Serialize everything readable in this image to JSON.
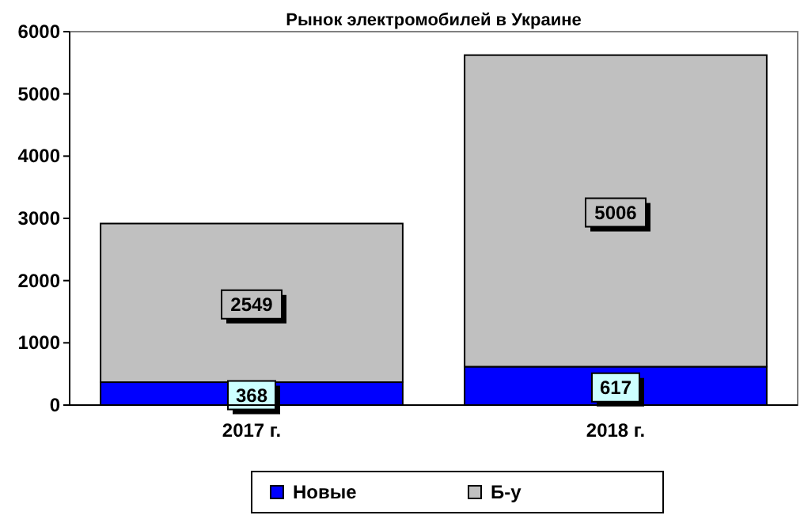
{
  "chart_data": {
    "type": "bar",
    "title": "Рынок электромобилей в Украине",
    "categories": [
      "2017 г.",
      "2018 г."
    ],
    "stacked": true,
    "series": [
      {
        "name": "Новые",
        "color": "#0000ff",
        "values": [
          368,
          617
        ]
      },
      {
        "name": "Б-у",
        "color": "#c0c0c0",
        "values": [
          2549,
          5006
        ]
      }
    ],
    "ylim": [
      0,
      6000
    ],
    "yticks": [
      0,
      1000,
      2000,
      3000,
      4000,
      5000,
      6000
    ],
    "data_labels": true,
    "legend": "bottom",
    "grid": false
  }
}
